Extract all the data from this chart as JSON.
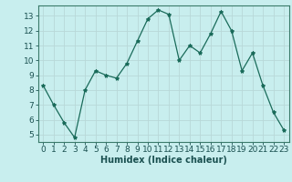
{
  "x": [
    0,
    1,
    2,
    3,
    4,
    5,
    6,
    7,
    8,
    9,
    10,
    11,
    12,
    13,
    14,
    15,
    16,
    17,
    18,
    19,
    20,
    21,
    22,
    23
  ],
  "y": [
    8.3,
    7.0,
    5.8,
    4.8,
    8.0,
    9.3,
    9.0,
    8.8,
    9.8,
    11.3,
    12.8,
    13.4,
    13.1,
    10.0,
    11.0,
    10.5,
    11.8,
    13.3,
    12.0,
    9.3,
    10.5,
    8.3,
    6.5,
    5.3
  ],
  "line_color": "#1a6b5a",
  "marker": "*",
  "marker_size": 3,
  "bg_color": "#c8eeee",
  "grid_color": "#b8d8d8",
  "xlabel": "Humidex (Indice chaleur)",
  "xlabel_fontsize": 7,
  "tick_fontsize": 6.5,
  "xlim": [
    -0.5,
    23.5
  ],
  "ylim": [
    4.5,
    13.7
  ],
  "yticks": [
    5,
    6,
    7,
    8,
    9,
    10,
    11,
    12,
    13
  ],
  "xticks": [
    0,
    1,
    2,
    3,
    4,
    5,
    6,
    7,
    8,
    9,
    10,
    11,
    12,
    13,
    14,
    15,
    16,
    17,
    18,
    19,
    20,
    21,
    22,
    23
  ]
}
